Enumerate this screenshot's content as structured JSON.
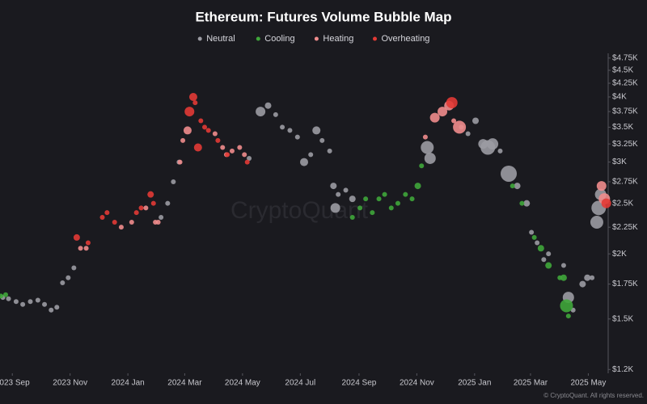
{
  "chart_data": {
    "type": "bubble",
    "title": "Ethereum: Futures Volume Bubble Map",
    "watermark": "CryptoQuant",
    "footer": "© CryptoQuant. All rights reserved.",
    "log_y": true,
    "legend": "top",
    "xlim": [
      "2023-08-19",
      "2025-05-22"
    ],
    "xticks": [
      {
        "value": "2023-09",
        "label": "2023 Sep"
      },
      {
        "value": "2023-11",
        "label": "2023 Nov"
      },
      {
        "value": "2024-01",
        "label": "2024 Jan"
      },
      {
        "value": "2024-03",
        "label": "2024 Mar"
      },
      {
        "value": "2024-05",
        "label": "2024 May"
      },
      {
        "value": "2024-07",
        "label": "2024 Jul"
      },
      {
        "value": "2024-09",
        "label": "2024 Sep"
      },
      {
        "value": "2024-11",
        "label": "2024 Nov"
      },
      {
        "value": "2025-01",
        "label": "2025 Jan"
      },
      {
        "value": "2025-03",
        "label": "2025 Mar"
      },
      {
        "value": "2025-05",
        "label": "2025 May"
      }
    ],
    "ylim": [
      1180,
      4850
    ],
    "yticks": [
      {
        "value": 1200,
        "label": "$1.2K"
      },
      {
        "value": 1500,
        "label": "$1.5K"
      },
      {
        "value": 1750,
        "label": "$1.75K"
      },
      {
        "value": 2000,
        "label": "$2K"
      },
      {
        "value": 2250,
        "label": "$2.25K"
      },
      {
        "value": 2500,
        "label": "$2.5K"
      },
      {
        "value": 2750,
        "label": "$2.75K"
      },
      {
        "value": 3000,
        "label": "$3K"
      },
      {
        "value": 3250,
        "label": "$3.25K"
      },
      {
        "value": 3500,
        "label": "$3.5K"
      },
      {
        "value": 3750,
        "label": "$3.75K"
      },
      {
        "value": 4000,
        "label": "$4K"
      },
      {
        "value": 4250,
        "label": "$4.25K"
      },
      {
        "value": 4500,
        "label": "$4.5K"
      },
      {
        "value": 4750,
        "label": "$4.75K"
      }
    ],
    "series": [
      {
        "name": "Neutral",
        "color": "#9b9ba2",
        "x": [
          "2023-08-22",
          "2023-08-28",
          "2023-09-05",
          "2023-09-12",
          "2023-09-20",
          "2023-09-28",
          "2023-10-05",
          "2023-10-12",
          "2023-10-18",
          "2023-10-24",
          "2023-10-30",
          "2023-11-05",
          "2024-02-05",
          "2024-02-12",
          "2024-02-18",
          "2024-02-24",
          "2024-05-08",
          "2024-05-20",
          "2024-05-28",
          "2024-06-05",
          "2024-06-12",
          "2024-06-20",
          "2024-06-28",
          "2024-07-05",
          "2024-07-12",
          "2024-07-18",
          "2024-07-24",
          "2024-08-01",
          "2024-08-05",
          "2024-08-07",
          "2024-08-10",
          "2024-08-18",
          "2024-08-25",
          "2024-11-12",
          "2024-11-15",
          "2024-12-18",
          "2024-12-25",
          "2025-01-02",
          "2025-01-10",
          "2025-01-15",
          "2025-01-20",
          "2025-01-28",
          "2025-02-06",
          "2025-02-15",
          "2025-02-25",
          "2025-03-02",
          "2025-03-08",
          "2025-03-15",
          "2025-03-20",
          "2025-04-05",
          "2025-04-10",
          "2025-04-15",
          "2025-04-25",
          "2025-04-30",
          "2025-05-05",
          "2025-05-10",
          "2025-05-12",
          "2025-05-14"
        ],
        "values": [
          1650,
          1640,
          1620,
          1600,
          1620,
          1630,
          1600,
          1560,
          1580,
          1760,
          1800,
          1880,
          2350,
          2500,
          2750,
          3000,
          3050,
          3750,
          3850,
          3700,
          3500,
          3450,
          3350,
          3000,
          3100,
          3450,
          3300,
          3150,
          2700,
          2450,
          2600,
          2650,
          2550,
          3200,
          3050,
          3500,
          3400,
          3600,
          3250,
          3200,
          3250,
          3150,
          2850,
          2700,
          2500,
          2200,
          2100,
          1950,
          2000,
          1900,
          1650,
          1560,
          1750,
          1800,
          1800,
          2300,
          2450,
          2600
        ],
        "sizes": [
          3,
          3,
          3,
          3,
          3,
          3,
          3,
          3,
          3,
          3,
          3,
          3,
          3,
          3,
          3,
          3,
          3,
          6,
          4,
          3,
          3,
          3,
          3,
          5,
          3,
          5,
          3,
          3,
          4,
          6,
          3,
          3,
          4,
          8,
          7,
          3,
          3,
          4,
          6,
          9,
          7,
          3,
          10,
          4,
          4,
          3,
          3,
          3,
          3,
          3,
          7,
          3,
          4,
          4,
          3,
          8,
          9,
          7
        ]
      },
      {
        "name": "Cooling",
        "color": "#3fa63a",
        "x": [
          "2023-08-20",
          "2023-08-25",
          "2024-08-25",
          "2024-09-02",
          "2024-09-08",
          "2024-09-15",
          "2024-09-22",
          "2024-09-28",
          "2024-10-05",
          "2024-10-12",
          "2024-10-20",
          "2024-10-27",
          "2024-11-02",
          "2024-11-06",
          "2025-02-10",
          "2025-02-20",
          "2025-03-05",
          "2025-03-12",
          "2025-03-20",
          "2025-04-01",
          "2025-04-05",
          "2025-04-08",
          "2025-04-10"
        ],
        "values": [
          1660,
          1670,
          2350,
          2450,
          2550,
          2400,
          2550,
          2600,
          2450,
          2500,
          2600,
          2550,
          2700,
          2950,
          2700,
          2500,
          2150,
          2050,
          1900,
          1800,
          1800,
          1590,
          1520
        ],
        "sizes": [
          3,
          3,
          3,
          3,
          3,
          3,
          3,
          3,
          3,
          3,
          3,
          3,
          4,
          3,
          3,
          3,
          3,
          4,
          4,
          3,
          4,
          8,
          3
        ]
      },
      {
        "name": "Heating",
        "color": "#ef8c8c",
        "x": [
          "2023-11-12",
          "2023-11-18",
          "2023-12-25",
          "2024-01-05",
          "2024-01-20",
          "2024-01-30",
          "2024-02-02",
          "2024-02-25",
          "2024-02-28",
          "2024-03-04",
          "2024-04-02",
          "2024-04-10",
          "2024-04-14",
          "2024-04-20",
          "2024-04-28",
          "2024-05-03",
          "2024-11-10",
          "2024-11-20",
          "2024-11-28",
          "2024-12-05",
          "2024-12-10",
          "2024-12-16",
          "2025-05-15",
          "2025-05-18"
        ],
        "values": [
          2050,
          2050,
          2250,
          2300,
          2450,
          2300,
          2300,
          3000,
          3300,
          3450,
          3400,
          3200,
          3100,
          3150,
          3200,
          3100,
          3350,
          3650,
          3750,
          3850,
          3600,
          3500,
          2700,
          2550
        ],
        "sizes": [
          3,
          3,
          3,
          3,
          3,
          3,
          3,
          3,
          3,
          5,
          3,
          3,
          3,
          3,
          3,
          3,
          3,
          6,
          6,
          6,
          3,
          8,
          6,
          7
        ]
      },
      {
        "name": "Overheating",
        "color": "#e23a35",
        "x": [
          "2023-11-08",
          "2023-11-20",
          "2023-12-05",
          "2023-12-10",
          "2023-12-18",
          "2024-01-10",
          "2024-01-15",
          "2024-01-25",
          "2024-01-28",
          "2024-03-06",
          "2024-03-10",
          "2024-03-12",
          "2024-03-15",
          "2024-03-18",
          "2024-03-22",
          "2024-03-26",
          "2024-04-05",
          "2024-04-15",
          "2024-05-06",
          "2024-12-08",
          "2025-05-20"
        ],
        "values": [
          2150,
          2100,
          2350,
          2400,
          2300,
          2400,
          2450,
          2600,
          2500,
          3750,
          4000,
          3900,
          3200,
          3600,
          3500,
          3450,
          3300,
          3100,
          3000,
          3900,
          2500
        ],
        "sizes": [
          4,
          3,
          3,
          3,
          3,
          3,
          3,
          4,
          3,
          6,
          5,
          3,
          5,
          3,
          3,
          3,
          3,
          3,
          3,
          7,
          6
        ]
      }
    ]
  }
}
